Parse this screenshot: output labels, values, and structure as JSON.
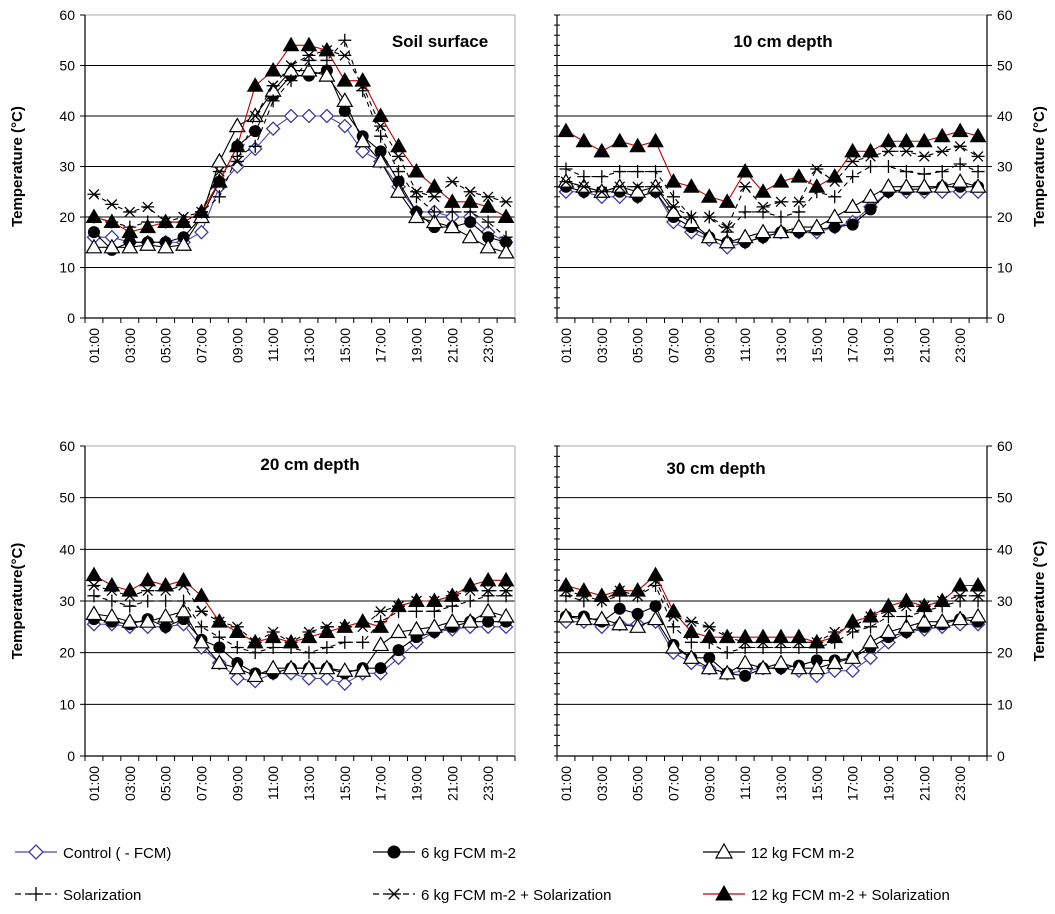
{
  "chart_data": [
    {
      "type": "line",
      "title": "Soil surface",
      "ylabel": "Temperature  (°C)",
      "ylabel_side": "left",
      "ylim": [
        0,
        60
      ],
      "yticks": [
        "0",
        "10",
        "20",
        "30",
        "40",
        "50",
        "60"
      ],
      "grid": true,
      "x": [
        "01:00",
        "02:00",
        "03:00",
        "04:00",
        "05:00",
        "06:00",
        "07:00",
        "08:00",
        "09:00",
        "10:00",
        "11:00",
        "12:00",
        "13:00",
        "14:00",
        "15:00",
        "16:00",
        "17:00",
        "18:00",
        "19:00",
        "20:00",
        "21:00",
        "22:00",
        "23:00",
        "24:00"
      ],
      "xtick_labels": [
        "01:00",
        "03:00",
        "05:00",
        "07:00",
        "09:00",
        "11:00",
        "13:00",
        "15:00",
        "17:00",
        "19:00",
        "21:00",
        "23:00"
      ],
      "series": [
        {
          "name": "Control ( - FCM)",
          "values": [
            16,
            16,
            15,
            15,
            15,
            15,
            17,
            26,
            30,
            33.5,
            37.5,
            40,
            40,
            40,
            38,
            33,
            31,
            26,
            21,
            21,
            20,
            20,
            17,
            15
          ]
        },
        {
          "name": "6 kg FCM m-2",
          "values": [
            17,
            13.5,
            15,
            15,
            15,
            16,
            20,
            27,
            34,
            37,
            44,
            48,
            48,
            49,
            41,
            36,
            33,
            27,
            21,
            18,
            18,
            19,
            16,
            15
          ]
        },
        {
          "name": "12 kg FCM m-2",
          "values": [
            14,
            14,
            14,
            14.5,
            14,
            14.5,
            20,
            31,
            38,
            40,
            45,
            49,
            49,
            48,
            43,
            35,
            31,
            25,
            20,
            19,
            18,
            16,
            14,
            13
          ]
        },
        {
          "name": "Solarization",
          "values": [
            20,
            19,
            18,
            19,
            19,
            19,
            21,
            24,
            32,
            34,
            43,
            47,
            51,
            51,
            55,
            45,
            36,
            29,
            24,
            21,
            21,
            21,
            19,
            16
          ]
        },
        {
          "name": "6 kg FCM m-2  + Solarization",
          "values": [
            24.5,
            22.5,
            21,
            22,
            19,
            20,
            21,
            29,
            31,
            40,
            46,
            50,
            52,
            53,
            52,
            46,
            38,
            32,
            25,
            24,
            27,
            25,
            24,
            23
          ]
        },
        {
          "name": "12 kg FCM m-2 + Solarization",
          "values": [
            20,
            19,
            17,
            18,
            19,
            19,
            21,
            27,
            34,
            46,
            49,
            54,
            54,
            53,
            47,
            47,
            40,
            34,
            29,
            26,
            23,
            23,
            22,
            20
          ]
        }
      ]
    },
    {
      "type": "line",
      "title": "10 cm depth",
      "ylabel": "Temperature  (°C)",
      "ylabel_side": "right",
      "ylim": [
        0,
        60
      ],
      "yticks": [
        "0",
        "10",
        "20",
        "30",
        "40",
        "50",
        "60"
      ],
      "grid": true,
      "x": [
        "01:00",
        "02:00",
        "03:00",
        "04:00",
        "05:00",
        "06:00",
        "07:00",
        "08:00",
        "09:00",
        "10:00",
        "11:00",
        "12:00",
        "13:00",
        "14:00",
        "15:00",
        "16:00",
        "17:00",
        "18:00",
        "19:00",
        "20:00",
        "21:00",
        "22:00",
        "23:00",
        "24:00"
      ],
      "xtick_labels": [
        "01:00",
        "03:00",
        "05:00",
        "07:00",
        "09:00",
        "11:00",
        "13:00",
        "15:00",
        "17:00",
        "19:00",
        "21:00",
        "23:00"
      ],
      "series": [
        {
          "name": "Control ( - FCM)",
          "values": [
            25,
            25,
            24,
            24,
            24,
            25,
            19,
            17,
            15.5,
            14,
            15,
            16,
            17,
            17,
            17,
            18,
            19,
            22,
            25,
            25,
            25,
            25,
            25,
            25
          ]
        },
        {
          "name": "6 kg FCM m-2",
          "values": [
            26,
            25,
            25,
            25,
            24,
            25,
            20,
            18,
            16,
            15,
            15,
            16,
            17,
            17,
            17.5,
            18,
            18.5,
            21.5,
            25,
            25.5,
            25.5,
            26,
            26,
            26
          ]
        },
        {
          "name": "12 kg FCM m-2",
          "values": [
            27,
            26,
            25,
            26,
            25,
            26,
            21,
            19,
            16,
            15,
            16,
            17,
            17,
            18,
            18,
            20,
            22,
            24,
            26,
            26,
            26,
            26,
            27,
            26
          ]
        },
        {
          "name": "Solarization",
          "values": [
            29.5,
            28,
            28,
            29,
            29,
            29,
            24,
            20,
            20,
            17,
            21,
            21,
            20,
            21,
            25,
            24,
            28,
            30,
            30,
            29,
            28.5,
            29,
            30.5,
            29
          ]
        },
        {
          "name": "6 kg FCM m-2  + Solarization",
          "values": [
            27,
            26,
            25,
            26,
            26,
            26,
            22,
            20,
            20,
            18,
            26,
            22,
            23,
            23,
            29.5,
            27,
            31,
            32,
            33,
            33,
            32,
            33,
            34,
            32
          ]
        },
        {
          "name": "12 kg FCM m-2 + Solarization",
          "values": [
            37,
            35,
            33,
            35,
            34,
            35,
            27,
            26,
            24,
            23,
            29,
            25,
            27,
            28,
            26,
            28,
            33,
            33,
            35,
            35,
            35,
            36,
            37,
            36
          ]
        }
      ]
    },
    {
      "type": "line",
      "title": "20 cm depth",
      "ylabel": "Temperature(°C)",
      "ylabel_side": "left",
      "ylim": [
        0,
        60
      ],
      "yticks": [
        "0",
        "10",
        "20",
        "30",
        "40",
        "50",
        "60"
      ],
      "grid": true,
      "x": [
        "01:00",
        "02:00",
        "03:00",
        "04:00",
        "05:00",
        "06:00",
        "07:00",
        "08:00",
        "09:00",
        "10:00",
        "11:00",
        "12:00",
        "13:00",
        "14:00",
        "15:00",
        "16:00",
        "17:00",
        "18:00",
        "19:00",
        "20:00",
        "21:00",
        "22:00",
        "23:00",
        "24:00"
      ],
      "xtick_labels": [
        "01:00",
        "03:00",
        "05:00",
        "07:00",
        "09:00",
        "11:00",
        "13:00",
        "15:00",
        "17:00",
        "19:00",
        "21:00",
        "23:00"
      ],
      "series": [
        {
          "name": "Control ( - FCM)",
          "values": [
            25.5,
            25.5,
            25,
            25,
            25,
            25.5,
            21,
            18,
            15,
            14.5,
            16,
            16,
            15,
            15,
            14,
            16,
            16,
            19,
            22,
            24,
            24.5,
            25,
            25,
            25
          ]
        },
        {
          "name": "6 kg FCM m-2",
          "values": [
            26.5,
            26,
            25.5,
            26.5,
            25,
            26.5,
            22.5,
            21,
            18,
            16,
            16,
            17,
            17,
            17,
            16,
            17,
            17,
            20.5,
            23,
            24,
            25,
            26,
            26,
            26
          ]
        },
        {
          "name": "12 kg FCM m-2",
          "values": [
            27.5,
            27,
            26,
            26,
            27,
            28,
            22,
            18,
            17,
            15.5,
            17,
            17,
            17,
            17,
            16.5,
            16.5,
            21.5,
            24,
            24.5,
            25,
            26,
            26,
            28,
            27
          ]
        },
        {
          "name": "Solarization",
          "values": [
            31,
            30,
            29,
            30,
            30,
            30,
            25,
            23,
            21,
            20,
            21,
            21,
            20,
            21,
            22,
            22,
            26,
            28,
            28,
            28,
            29,
            30,
            31,
            31
          ]
        },
        {
          "name": "6 kg FCM m-2  + Solarization",
          "values": [
            33,
            32,
            31,
            32,
            32,
            33,
            28,
            26,
            25,
            22,
            24,
            22,
            24,
            25,
            25,
            25,
            28,
            29,
            30,
            30,
            31,
            32,
            32,
            32
          ]
        },
        {
          "name": "12 kg FCM m-2 + Solarization",
          "values": [
            35,
            33,
            32,
            34,
            33,
            34,
            31,
            26,
            24,
            22,
            23,
            22,
            23,
            24,
            25,
            26,
            25,
            29,
            30,
            30,
            31,
            33,
            34,
            34
          ]
        }
      ]
    },
    {
      "type": "line",
      "title": "30 cm depth",
      "ylabel": "Temperature  (°C)",
      "ylabel_side": "right",
      "ylim": [
        0,
        60
      ],
      "yticks": [
        "0",
        "10",
        "20",
        "30",
        "40",
        "50",
        "60"
      ],
      "grid": true,
      "x": [
        "01:00",
        "02:00",
        "03:00",
        "04:00",
        "05:00",
        "06:00",
        "07:00",
        "08:00",
        "09:00",
        "10:00",
        "11:00",
        "12:00",
        "13:00",
        "14:00",
        "15:00",
        "16:00",
        "17:00",
        "18:00",
        "19:00",
        "20:00",
        "21:00",
        "22:00",
        "23:00",
        "24:00"
      ],
      "xtick_labels": [
        "01:00",
        "03:00",
        "05:00",
        "07:00",
        "09:00",
        "11:00",
        "13:00",
        "15:00",
        "17:00",
        "19:00",
        "21:00",
        "23:00"
      ],
      "series": [
        {
          "name": "Control ( - FCM)",
          "values": [
            26,
            26,
            25,
            25.5,
            25.5,
            26,
            20,
            18,
            17,
            16,
            16.5,
            17,
            17,
            16.5,
            15.5,
            16.5,
            16.5,
            19,
            22,
            24,
            24.5,
            25,
            25.5,
            25.5
          ]
        },
        {
          "name": "6 kg FCM m-2",
          "values": [
            27,
            27,
            26,
            28.5,
            27.5,
            29,
            21.5,
            19,
            19,
            16,
            15.5,
            17,
            17,
            17.5,
            18.5,
            18.5,
            19,
            21,
            23,
            24,
            25,
            25.5,
            26.5,
            26
          ]
        },
        {
          "name": "12 kg FCM m-2",
          "values": [
            27,
            26.5,
            26.5,
            25.5,
            25,
            26.5,
            21,
            19,
            17,
            16,
            18,
            17,
            18,
            17,
            17,
            18,
            19,
            22,
            24,
            25,
            26,
            26,
            26.5,
            27
          ]
        },
        {
          "name": "Solarization",
          "values": [
            31,
            30,
            30,
            31,
            31,
            33,
            25,
            22,
            22,
            20,
            21,
            21,
            21,
            21,
            21,
            22,
            24,
            25,
            27,
            27,
            28,
            29,
            30,
            30
          ]
        },
        {
          "name": "6 kg FCM m-2  + Solarization",
          "values": [
            32,
            31,
            30,
            32,
            31,
            34,
            27,
            26,
            25,
            23,
            22,
            22,
            22,
            22,
            22,
            24,
            25,
            27,
            28,
            29,
            29,
            30,
            31,
            31
          ]
        },
        {
          "name": "12 kg FCM m-2 + Solarization",
          "values": [
            33,
            32,
            31,
            32,
            32,
            35,
            28,
            24,
            23,
            23,
            23,
            23,
            23,
            23,
            22,
            23,
            26,
            27,
            29,
            30,
            29,
            30,
            33,
            33
          ]
        }
      ]
    }
  ],
  "legend": {
    "items": [
      {
        "label": "Control ( - FCM)",
        "marker": "diamond-open",
        "color": "#4a4aa8",
        "line": "solid"
      },
      {
        "label": "6 kg FCM m-2",
        "marker": "circle-filled",
        "color": "#000000",
        "line": "solid"
      },
      {
        "label": "12 kg FCM m-2",
        "marker": "triangle-open",
        "color": "#000000",
        "line": "solid"
      },
      {
        "label": "Solarization",
        "marker": "plus",
        "color": "#000000",
        "line": "dashed"
      },
      {
        "label": "6 kg FCM m-2  + Solarization",
        "marker": "asterisk",
        "color": "#000000",
        "line": "dashed"
      },
      {
        "label": "12 kg FCM m-2 + Solarization",
        "marker": "triangle-filled",
        "color": "#c00000",
        "line": "solid"
      }
    ]
  }
}
